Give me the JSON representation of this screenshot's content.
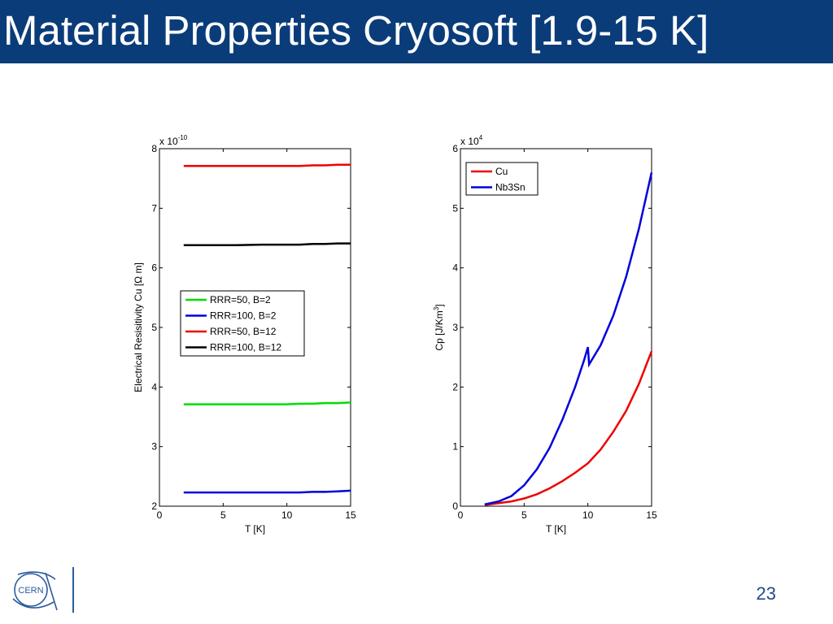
{
  "slide": {
    "title": "Material Properties Cryosoft [1.9-15 K]",
    "page_number": "23",
    "logo_text": "CERN",
    "colors": {
      "title_bar": "#0b3c7a",
      "accent": "#1f4a8c"
    }
  },
  "chart_data": [
    {
      "type": "line",
      "title": "",
      "xlabel": "T [K]",
      "ylabel": "Electrical Resisitivity Cu [Ω m]",
      "multiplier": "x 10",
      "multiplier_exp": "-10",
      "xlim": [
        0,
        15
      ],
      "ylim": [
        2,
        8
      ],
      "xticks": [
        0,
        5,
        10,
        15
      ],
      "yticks": [
        2,
        3,
        4,
        5,
        6,
        7,
        8
      ],
      "grid": false,
      "legend_position": "center-right",
      "series": [
        {
          "name": "RRR=50, B=2",
          "color": "#00dd00",
          "x": [
            1.9,
            4,
            6,
            8,
            10,
            11,
            12,
            13,
            14,
            15
          ],
          "y": [
            3.71,
            3.71,
            3.71,
            3.71,
            3.71,
            3.72,
            3.72,
            3.73,
            3.73,
            3.74
          ]
        },
        {
          "name": "RRR=100, B=2",
          "color": "#0000dd",
          "x": [
            1.9,
            4,
            6,
            8,
            10,
            11,
            12,
            13,
            14,
            15
          ],
          "y": [
            2.23,
            2.23,
            2.23,
            2.23,
            2.23,
            2.23,
            2.24,
            2.24,
            2.25,
            2.26
          ]
        },
        {
          "name": "RRR=50, B=12",
          "color": "#ee0000",
          "x": [
            1.9,
            4,
            6,
            8,
            10,
            11,
            12,
            13,
            14,
            15
          ],
          "y": [
            7.71,
            7.71,
            7.71,
            7.71,
            7.71,
            7.71,
            7.72,
            7.72,
            7.73,
            7.73
          ]
        },
        {
          "name": "RRR=100, B=12",
          "color": "#000000",
          "x": [
            1.9,
            4,
            6,
            8,
            10,
            11,
            12,
            13,
            14,
            15
          ],
          "y": [
            6.38,
            6.38,
            6.38,
            6.39,
            6.39,
            6.39,
            6.4,
            6.4,
            6.41,
            6.41
          ]
        }
      ]
    },
    {
      "type": "line",
      "title": "",
      "xlabel": "T [K]",
      "ylabel": "Cp [J/Km",
      "ylabel_sup": "3",
      "ylabel_end": "]",
      "multiplier": "x 10",
      "multiplier_exp": "4",
      "xlim": [
        0,
        15
      ],
      "ylim": [
        0,
        6
      ],
      "xticks": [
        0,
        5,
        10,
        15
      ],
      "yticks": [
        0,
        1,
        2,
        3,
        4,
        5,
        6
      ],
      "grid": false,
      "legend_position": "top-right",
      "series": [
        {
          "name": "Cu",
          "color": "#ee0000",
          "x": [
            1.9,
            3,
            4,
            5,
            6,
            7,
            8,
            9,
            10,
            11,
            12,
            13,
            14,
            15
          ],
          "y": [
            0.02,
            0.05,
            0.08,
            0.13,
            0.2,
            0.3,
            0.42,
            0.56,
            0.72,
            0.95,
            1.25,
            1.6,
            2.05,
            2.6
          ]
        },
        {
          "name": "Nb3Sn",
          "color": "#0000dd",
          "x": [
            1.9,
            3,
            4,
            5,
            6,
            7,
            8,
            9,
            9.7,
            10,
            10.1,
            11,
            12,
            13,
            14,
            15
          ],
          "y": [
            0.03,
            0.08,
            0.17,
            0.35,
            0.62,
            0.98,
            1.45,
            2.0,
            2.45,
            2.67,
            2.38,
            2.7,
            3.2,
            3.85,
            4.65,
            5.6
          ]
        }
      ]
    }
  ]
}
